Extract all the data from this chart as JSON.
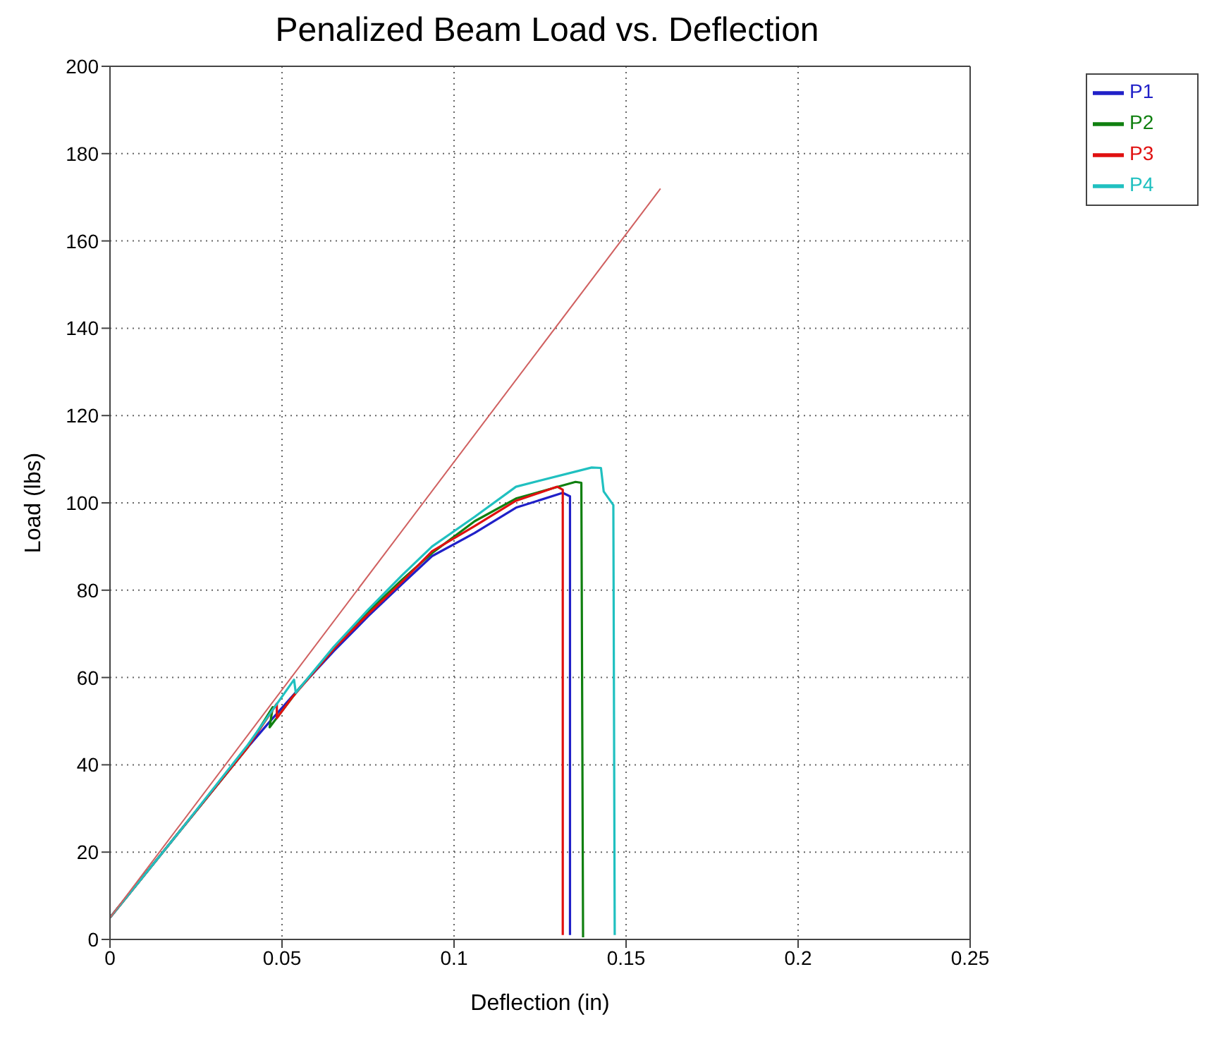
{
  "chart_data": {
    "type": "line",
    "title": "Penalized Beam Load vs. Deflection",
    "xlabel": "Deflection (in)",
    "ylabel": "Load (lbs)",
    "xlim": [
      0,
      0.25
    ],
    "xticks": [
      0,
      0.05,
      0.1,
      0.15,
      0.2,
      0.25
    ],
    "ylim": [
      0,
      200
    ],
    "yticks": [
      0,
      20,
      40,
      60,
      80,
      100,
      120,
      140,
      160,
      180,
      200
    ],
    "grid": true,
    "legend": "top right",
    "marker": "none",
    "line_style": "solid",
    "series": [
      {
        "name": "P1",
        "color": "#2020c8",
        "x": [
          0,
          0.02,
          0.04,
          0.046,
          0.055,
          0.065,
          0.075,
          0.085,
          0.0936,
          0.106,
          0.118,
          0.1316,
          0.1337,
          0.1337
        ],
        "values": [
          5,
          24.5,
          44,
          49.5,
          57.5,
          66,
          74,
          81.5,
          87.8,
          93.1,
          98.9,
          102.3,
          101.5,
          1
        ]
      },
      {
        "name": "P2",
        "color": "#108010",
        "x": [
          0,
          0.02,
          0.04,
          0.0473,
          0.0464,
          0.055,
          0.065,
          0.075,
          0.085,
          0.0936,
          0.106,
          0.118,
          0.1353,
          0.137,
          0.1375
        ],
        "values": [
          5,
          24.5,
          44,
          53.2,
          48.6,
          57.5,
          66.5,
          75,
          82.5,
          88.5,
          95.8,
          101,
          104.8,
          104.6,
          0.5
        ]
      },
      {
        "name": "P3",
        "color": "#e01010",
        "x": [
          0,
          0.02,
          0.04,
          0.0485,
          0.0485,
          0.0528,
          0.065,
          0.075,
          0.085,
          0.0936,
          0.106,
          0.118,
          0.13,
          0.1316,
          0.1316
        ],
        "values": [
          5,
          24.5,
          44,
          54,
          50.7,
          55.3,
          66.5,
          74.5,
          82,
          88.9,
          94.7,
          100.5,
          103.7,
          103,
          1
        ]
      },
      {
        "name": "P4",
        "color": "#20c0c0",
        "x": [
          0,
          0.02,
          0.04,
          0.0535,
          0.054,
          0.065,
          0.075,
          0.085,
          0.0936,
          0.106,
          0.118,
          0.14,
          0.1427,
          0.1435,
          0.1463,
          0.1467
        ],
        "values": [
          5,
          24.5,
          44.5,
          59.5,
          56.5,
          67,
          75.5,
          83.5,
          90,
          96.8,
          103.7,
          108.1,
          108,
          102.6,
          99.5,
          1
        ]
      },
      {
        "color": "#d06060",
        "x": [
          0,
          0.16
        ],
        "values": [
          5,
          172
        ]
      }
    ]
  }
}
